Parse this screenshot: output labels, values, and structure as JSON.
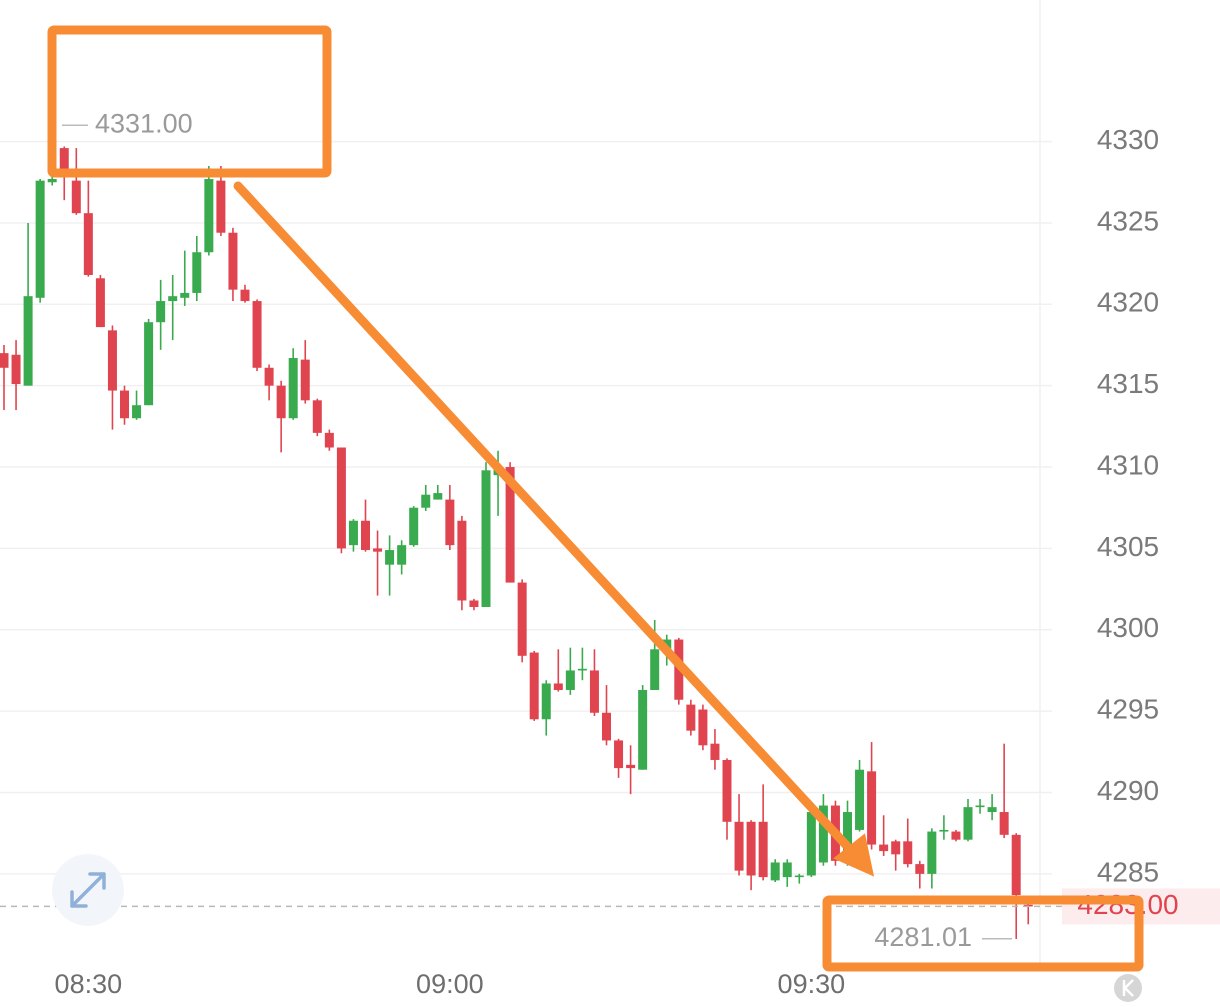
{
  "chart_data": {
    "type": "candlestick",
    "categories": [
      "08:23",
      "08:24",
      "08:25",
      "08:26",
      "08:27",
      "08:28",
      "08:29",
      "08:30",
      "08:31",
      "08:32",
      "08:33",
      "08:34",
      "08:35",
      "08:36",
      "08:37",
      "08:38",
      "08:39",
      "08:40",
      "08:41",
      "08:42",
      "08:43",
      "08:44",
      "08:45",
      "08:46",
      "08:47",
      "08:48",
      "08:49",
      "08:50",
      "08:51",
      "08:52",
      "08:53",
      "08:54",
      "08:55",
      "08:56",
      "08:57",
      "08:58",
      "08:59",
      "09:00",
      "09:01",
      "09:02",
      "09:03",
      "09:04",
      "09:05",
      "09:06",
      "09:07",
      "09:08",
      "09:09",
      "09:10",
      "09:11",
      "09:12",
      "09:13",
      "09:14",
      "09:15",
      "09:16",
      "09:17",
      "09:18",
      "09:19",
      "09:20",
      "09:21",
      "09:22",
      "09:23",
      "09:24",
      "09:25",
      "09:26",
      "09:27",
      "09:28",
      "09:29",
      "09:30",
      "09:31",
      "09:32",
      "09:33",
      "09:34",
      "09:35",
      "09:36",
      "09:37",
      "09:38",
      "09:39",
      "09:40",
      "09:41",
      "09:42",
      "09:43",
      "09:44",
      "09:45",
      "09:46",
      "09:47",
      "09:48"
    ],
    "open": [
      4317.0,
      4316.9,
      4315.0,
      4320.4,
      4327.5,
      4329.6,
      4327.6,
      4325.6,
      4321.6,
      4318.4,
      4314.7,
      4313.0,
      4313.8,
      4318.9,
      4320.2,
      4320.4,
      4320.7,
      4323.2,
      4327.6,
      4324.4,
      4320.9,
      4320.2,
      4316.1,
      4315.0,
      4313.0,
      4316.6,
      4314.1,
      4312.1,
      4311.2,
      4305.2,
      4306.7,
      4305.0,
      4304.0,
      4304.0,
      4305.2,
      4307.5,
      4308.0,
      4308.0,
      4306.7,
      4301.8,
      4301.4,
      4309.5,
      4310.0,
      4302.9,
      4298.6,
      4294.5,
      4296.7,
      4296.3,
      4297.5,
      4297.5,
      4294.9,
      4293.2,
      4291.7,
      4291.4,
      4296.3,
      4298.8,
      4299.4,
      4295.4,
      4295.1,
      4293.0,
      4292.0,
      4288.2,
      4288.2,
      4288.2,
      4284.6,
      4284.8,
      4284.8,
      4284.9,
      4285.7,
      4289.2,
      4285.8,
      4287.7,
      4291.3,
      4286.8,
      4287.0,
      4287.0,
      4285.6,
      4285.0,
      4287.6,
      4287.6,
      4287.1,
      4289.1,
      4288.8,
      4288.8,
      4287.4,
      4283.1
    ],
    "high": [
      4317.5,
      4317.8,
      4325.0,
      4327.7,
      4329.6,
      4329.7,
      4329.6,
      4327.6,
      4321.8,
      4318.7,
      4315.0,
      4314.7,
      4319.1,
      4321.5,
      4321.8,
      4323.3,
      4324.2,
      4328.5,
      4328.5,
      4324.7,
      4321.2,
      4320.3,
      4316.3,
      4315.3,
      4317.3,
      4317.8,
      4314.2,
      4312.3,
      4311.2,
      4306.8,
      4308.0,
      4306.1,
      4305.8,
      4305.5,
      4307.6,
      4308.9,
      4308.9,
      4308.9,
      4307.0,
      4301.9,
      4310.3,
      4311.0,
      4310.3,
      4303.1,
      4298.7,
      4296.9,
      4298.8,
      4298.9,
      4298.9,
      4298.8,
      4296.6,
      4293.3,
      4292.9,
      4296.6,
      4300.6,
      4299.7,
      4299.5,
      4295.7,
      4295.4,
      4293.9,
      4292.1,
      4289.9,
      4288.3,
      4290.5,
      4285.9,
      4285.9,
      4285.0,
      4289.0,
      4289.9,
      4289.5,
      4289.5,
      4292.0,
      4293.1,
      4288.6,
      4287.1,
      4288.4,
      4285.8,
      4287.8,
      4288.6,
      4287.7,
      4289.6,
      4289.6,
      4289.9,
      4293.0,
      4287.5,
      4283.2
    ],
    "low": [
      4313.5,
      4313.5,
      4315.0,
      4320.1,
      4327.3,
      4326.4,
      4325.5,
      4321.7,
      4318.6,
      4312.3,
      4312.6,
      4312.9,
      4313.8,
      4317.2,
      4317.8,
      4319.9,
      4320.2,
      4323.0,
      4324.2,
      4320.2,
      4320.1,
      4315.9,
      4314.1,
      4310.9,
      4312.9,
      4313.9,
      4311.9,
      4311.0,
      4304.7,
      4304.8,
      4304.8,
      4302.1,
      4302.1,
      4303.4,
      4305.1,
      4307.3,
      4308.0,
      4304.9,
      4301.2,
      4301.2,
      4301.4,
      4307.0,
      4302.9,
      4298.0,
      4294.4,
      4293.5,
      4296.2,
      4296.0,
      4296.9,
      4294.7,
      4292.9,
      4290.9,
      4289.9,
      4291.4,
      4296.3,
      4297.8,
      4295.4,
      4293.5,
      4292.6,
      4291.4,
      4287.1,
      4284.9,
      4284.0,
      4284.6,
      4284.5,
      4284.2,
      4284.4,
      4284.8,
      4285.5,
      4285.5,
      4285.5,
      4287.6,
      4286.5,
      4286.1,
      4285.2,
      4285.4,
      4284.1,
      4284.1,
      4287.1,
      4287.0,
      4287.0,
      4288.7,
      4288.3,
      4287.2,
      4281.0,
      4281.9
    ],
    "close": [
      4316.1,
      4315.1,
      4320.5,
      4327.6,
      4327.7,
      4327.9,
      4325.6,
      4321.8,
      4318.6,
      4314.7,
      4313.0,
      4313.8,
      4318.9,
      4320.2,
      4320.5,
      4320.7,
      4323.2,
      4327.7,
      4324.4,
      4320.9,
      4320.2,
      4316.1,
      4315.0,
      4313.0,
      4316.7,
      4314.1,
      4312.1,
      4311.2,
      4305.0,
      4306.7,
      4304.9,
      4304.8,
      4304.9,
      4305.2,
      4307.5,
      4308.3,
      4308.4,
      4305.2,
      4301.8,
      4301.4,
      4309.8,
      4309.9,
      4302.9,
      4298.4,
      4294.5,
      4296.7,
      4296.3,
      4297.5,
      4297.6,
      4294.9,
      4293.2,
      4291.5,
      4291.5,
      4296.3,
      4298.8,
      4299.4,
      4295.7,
      4293.8,
      4292.9,
      4292.0,
      4288.2,
      4285.2,
      4284.9,
      4284.8,
      4285.7,
      4285.7,
      4284.9,
      4288.8,
      4289.2,
      4285.8,
      4288.8,
      4291.4,
      4286.8,
      4286.4,
      4286.2,
      4285.6,
      4285.0,
      4287.6,
      4287.7,
      4287.1,
      4289.1,
      4289.2,
      4289.1,
      4287.4,
      4283.7,
      4283.0
    ],
    "up_color": "#3aaa4e",
    "down_color": "#e0444f",
    "ylim": [
      4279.4,
      4338.7
    ],
    "yticks": [
      4285,
      4290,
      4295,
      4300,
      4305,
      4310,
      4315,
      4320,
      4325,
      4330
    ],
    "xticks": [
      "08:30",
      "09:00",
      "09:30"
    ],
    "grid": true,
    "annotations": [
      {
        "value": 4331.0,
        "label": "4331.00"
      },
      {
        "value": 4281.01,
        "label": "4281.01"
      }
    ],
    "last_price": {
      "value": 4283.0,
      "label": "4283.00"
    }
  }
}
